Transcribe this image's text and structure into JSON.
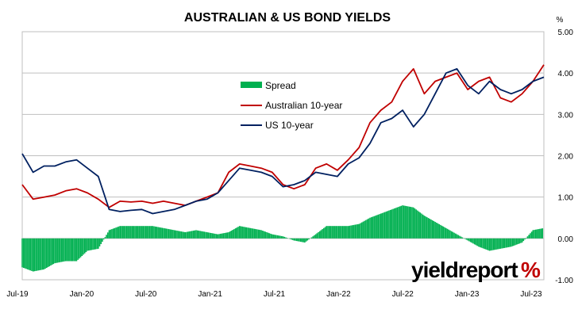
{
  "chart_data": {
    "type": "line",
    "title": "AUSTRALIAN & US BOND YIELDS",
    "ylabel": "%",
    "ylim": [
      -1.0,
      5.0
    ],
    "yticks": [
      "5.00",
      "4.00",
      "3.00",
      "2.00",
      "1.00",
      "0.00",
      "-1.00"
    ],
    "x_tick_labels": [
      "Jul-19",
      "Jan-20",
      "Jul-20",
      "Jan-21",
      "Jul-21",
      "Jan-22",
      "Jul-22",
      "Jan-23",
      "Jul-23"
    ],
    "xlim": [
      "2019-07",
      "2023-07"
    ],
    "grid": true,
    "legend_position": "center-left",
    "x": [
      "2019-07",
      "2019-08",
      "2019-09",
      "2019-10",
      "2019-11",
      "2019-12",
      "2020-01",
      "2020-02",
      "2020-03",
      "2020-04",
      "2020-05",
      "2020-06",
      "2020-07",
      "2020-08",
      "2020-09",
      "2020-10",
      "2020-11",
      "2020-12",
      "2021-01",
      "2021-02",
      "2021-03",
      "2021-04",
      "2021-05",
      "2021-06",
      "2021-07",
      "2021-08",
      "2021-09",
      "2021-10",
      "2021-11",
      "2021-12",
      "2022-01",
      "2022-02",
      "2022-03",
      "2022-04",
      "2022-05",
      "2022-06",
      "2022-07",
      "2022-08",
      "2022-09",
      "2022-10",
      "2022-11",
      "2022-12",
      "2023-01",
      "2023-02",
      "2023-03",
      "2023-04",
      "2023-05",
      "2023-06",
      "2023-07"
    ],
    "series": [
      {
        "name": "Spread",
        "kind": "bar",
        "color": "#00B050",
        "values": [
          -0.7,
          -0.8,
          -0.75,
          -0.6,
          -0.55,
          -0.55,
          -0.3,
          -0.25,
          0.2,
          0.3,
          0.3,
          0.3,
          0.3,
          0.25,
          0.2,
          0.15,
          0.2,
          0.15,
          0.1,
          0.15,
          0.3,
          0.25,
          0.2,
          0.1,
          0.05,
          -0.05,
          -0.1,
          0.1,
          0.3,
          0.3,
          0.3,
          0.35,
          0.5,
          0.6,
          0.7,
          0.8,
          0.75,
          0.55,
          0.4,
          0.25,
          0.1,
          -0.05,
          -0.2,
          -0.3,
          -0.25,
          -0.2,
          -0.1,
          0.2,
          0.25
        ]
      },
      {
        "name": "Australian 10-year",
        "kind": "line",
        "color": "#C00000",
        "values": [
          1.3,
          0.95,
          1.0,
          1.05,
          1.15,
          1.2,
          1.1,
          0.95,
          0.75,
          0.9,
          0.88,
          0.9,
          0.85,
          0.9,
          0.85,
          0.8,
          0.9,
          1.0,
          1.1,
          1.6,
          1.8,
          1.75,
          1.7,
          1.6,
          1.3,
          1.2,
          1.3,
          1.7,
          1.8,
          1.65,
          1.9,
          2.2,
          2.8,
          3.1,
          3.3,
          3.8,
          4.1,
          3.5,
          3.8,
          3.9,
          4.0,
          3.6,
          3.8,
          3.9,
          3.4,
          3.3,
          3.5,
          3.8,
          4.2
        ]
      },
      {
        "name": "US 10-year",
        "kind": "line",
        "color": "#002060",
        "values": [
          2.05,
          1.6,
          1.75,
          1.75,
          1.85,
          1.9,
          1.7,
          1.5,
          0.7,
          0.65,
          0.68,
          0.7,
          0.6,
          0.65,
          0.7,
          0.8,
          0.9,
          0.95,
          1.1,
          1.4,
          1.7,
          1.65,
          1.6,
          1.5,
          1.25,
          1.3,
          1.4,
          1.6,
          1.55,
          1.5,
          1.8,
          1.95,
          2.3,
          2.8,
          2.9,
          3.1,
          2.7,
          3.0,
          3.5,
          4.0,
          4.1,
          3.7,
          3.5,
          3.8,
          3.6,
          3.5,
          3.6,
          3.8,
          3.9
        ]
      }
    ]
  },
  "logo": {
    "text": "yieldreport",
    "symbol": "%"
  }
}
